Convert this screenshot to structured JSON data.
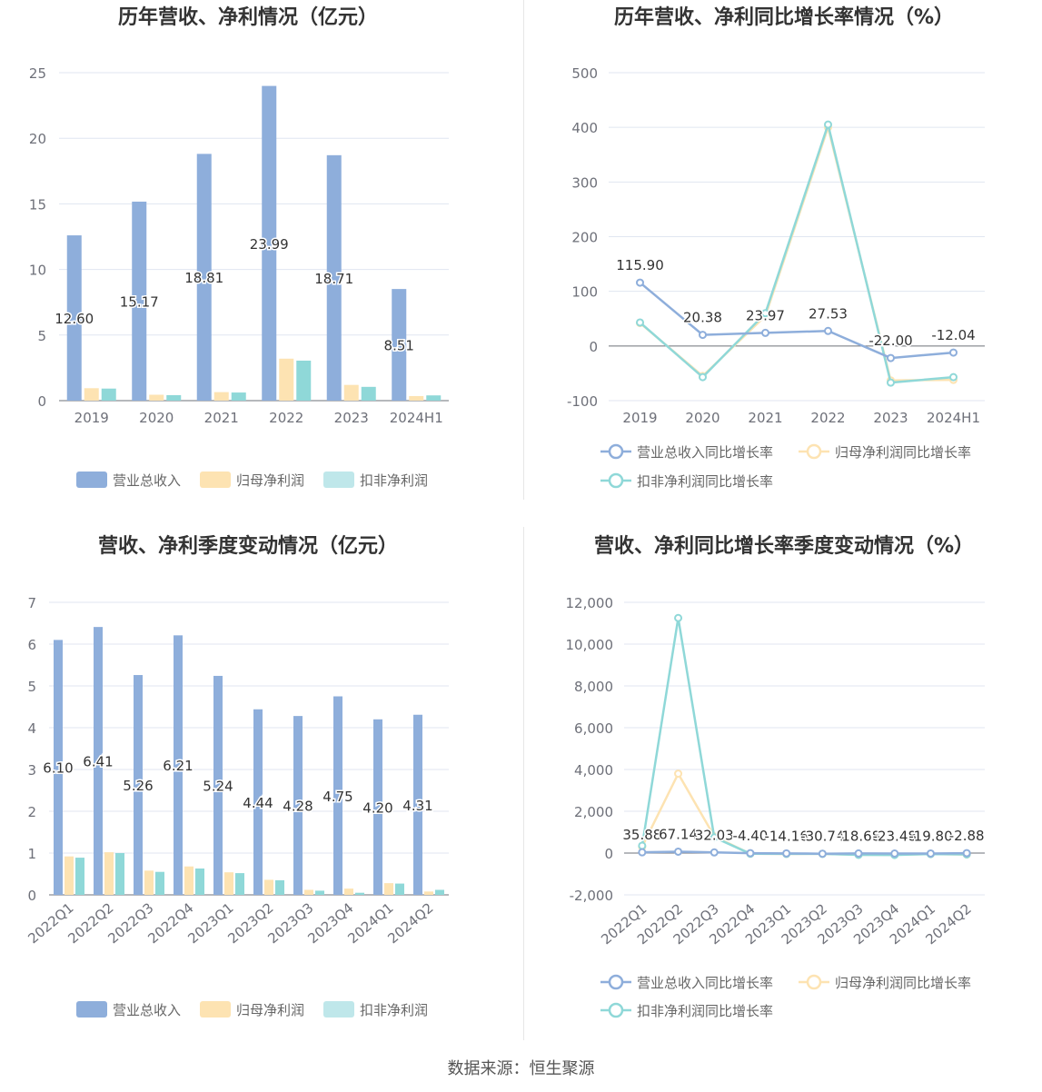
{
  "source": "数据来源：恒生聚源",
  "colors": {
    "revenue": "#8eaedb",
    "net_profit": "#fde3b2",
    "deducted_profit": "#8fd8d8",
    "revenue_legend": "#8eaedb",
    "net_profit_legend": "#fde3b2",
    "deducted_profit_legend": "#bfe7ea",
    "axis_text": "#6e7079",
    "grid": "#e0e6f1",
    "title": "#333333"
  },
  "chart_data": [
    {
      "type": "bar",
      "title": "历年营收、净利情况（亿元）",
      "categories": [
        "2019",
        "2020",
        "2021",
        "2022",
        "2023",
        "2024H1"
      ],
      "ylim": [
        0,
        25
      ],
      "yticks": [
        0,
        5,
        10,
        15,
        20,
        25
      ],
      "ytick_labels": [
        "0",
        "5",
        "10",
        "15",
        "20",
        "25"
      ],
      "series": [
        {
          "name": "营业总收入",
          "values": [
            12.6,
            15.17,
            18.81,
            23.99,
            18.71,
            8.51
          ],
          "labels": [
            "12.60",
            "15.17",
            "18.81",
            "23.99",
            "18.71",
            "8.51"
          ]
        },
        {
          "name": "归母净利润",
          "values": [
            0.95,
            0.45,
            0.65,
            3.2,
            1.2,
            0.35
          ]
        },
        {
          "name": "扣非净利润",
          "values": [
            0.92,
            0.42,
            0.62,
            3.05,
            1.05,
            0.4
          ]
        }
      ],
      "legend": "bottom",
      "grid": true
    },
    {
      "type": "line",
      "title": "历年营收、净利同比增长率情况（%）",
      "categories": [
        "2019",
        "2020",
        "2021",
        "2022",
        "2023",
        "2024H1"
      ],
      "ylim": [
        -100,
        500
      ],
      "yticks": [
        -100,
        0,
        100,
        200,
        300,
        400,
        500
      ],
      "ytick_labels": [
        "-100",
        "0",
        "100",
        "200",
        "300",
        "400",
        "500"
      ],
      "series": [
        {
          "name": "营业总收入同比增长率",
          "values": [
            115.9,
            20.38,
            23.97,
            27.53,
            -22.0,
            -12.04
          ],
          "labels": [
            "115.90",
            "20.38",
            "23.97",
            "27.53",
            "-22.00",
            "-12.04"
          ]
        },
        {
          "name": "归母净利润同比增长率",
          "values": [
            42,
            -55,
            55,
            400,
            -63,
            -62
          ]
        },
        {
          "name": "扣非净利润同比增长率",
          "values": [
            43,
            -57,
            60,
            405,
            -67,
            -57
          ]
        }
      ],
      "legend": "bottom",
      "grid": true
    },
    {
      "type": "bar",
      "title": "营收、净利季度变动情况（亿元）",
      "categories": [
        "2022Q1",
        "2022Q2",
        "2022Q3",
        "2022Q4",
        "2023Q1",
        "2023Q2",
        "2023Q3",
        "2023Q4",
        "2024Q1",
        "2024Q2"
      ],
      "ylim": [
        0,
        7
      ],
      "yticks": [
        0,
        1,
        2,
        3,
        4,
        5,
        6,
        7
      ],
      "ytick_labels": [
        "0",
        "1",
        "2",
        "3",
        "4",
        "5",
        "6",
        "7"
      ],
      "series": [
        {
          "name": "营业总收入",
          "values": [
            6.1,
            6.41,
            5.26,
            6.21,
            5.24,
            4.44,
            4.28,
            4.75,
            4.2,
            4.31
          ],
          "labels": [
            "6.10",
            "6.41",
            "5.26",
            "6.21",
            "5.24",
            "4.44",
            "4.28",
            "4.75",
            "4.20",
            "4.31"
          ]
        },
        {
          "name": "归母净利润",
          "values": [
            0.92,
            1.02,
            0.58,
            0.68,
            0.54,
            0.36,
            0.12,
            0.15,
            0.28,
            0.08
          ]
        },
        {
          "name": "扣非净利润",
          "values": [
            0.89,
            1.0,
            0.55,
            0.63,
            0.52,
            0.35,
            0.1,
            0.05,
            0.27,
            0.12
          ]
        }
      ],
      "legend": "bottom",
      "grid": true
    },
    {
      "type": "line",
      "title": "营收、净利同比增长率季度变动情况（%）",
      "categories": [
        "2022Q1",
        "2022Q2",
        "2022Q3",
        "2022Q4",
        "2023Q1",
        "2023Q2",
        "2023Q3",
        "2023Q4",
        "2024Q1",
        "2024Q2"
      ],
      "ylim": [
        -2000,
        12000
      ],
      "yticks": [
        -2000,
        0,
        2000,
        4000,
        6000,
        8000,
        10000,
        12000
      ],
      "ytick_labels": [
        "-2,000",
        "0",
        "2,000",
        "4,000",
        "6,000",
        "8,000",
        "10,000",
        "12,000"
      ],
      "series": [
        {
          "name": "营业总收入同比增长率",
          "values": [
            35.88,
            67.14,
            32.03,
            -4.4,
            -14.16,
            -30.74,
            -18.68,
            -23.48,
            -19.8,
            -2.88
          ],
          "labels": [
            "35.88",
            "67.14",
            "32.03",
            "-4.40",
            "-14.16",
            "-30.74",
            "-18.68",
            "-23.48",
            "-19.80",
            "-2.88"
          ]
        },
        {
          "name": "归母净利润同比增长率",
          "values": [
            300,
            3800,
            800,
            -30,
            -42,
            -38,
            -80,
            -80,
            -48,
            -70
          ]
        },
        {
          "name": "扣非净利润同比增长率",
          "values": [
            350,
            11250,
            750,
            -30,
            -40,
            -40,
            -85,
            -90,
            -48,
            -65
          ]
        }
      ],
      "legend": "bottom",
      "grid": true
    }
  ]
}
